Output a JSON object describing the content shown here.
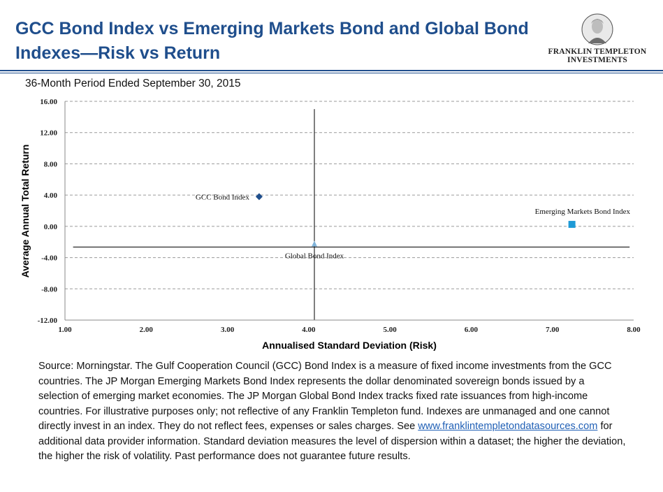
{
  "header": {
    "title": "GCC Bond Index vs Emerging Markets Bond and Global Bond Indexes—Risk vs Return",
    "subtitle": "36-Month Period Ended September 30, 2015"
  },
  "logo": {
    "line1": "FRANKLIN TEMPLETON",
    "line2": "INVESTMENTS"
  },
  "chart_data": {
    "type": "scatter",
    "xlabel": "Annualised Standard Deviation (Risk)",
    "ylabel": "Average Annual Total Return",
    "xlim": [
      1.0,
      8.0
    ],
    "ylim": [
      -12.0,
      16.0
    ],
    "x_ticks": [
      "1.00",
      "2.00",
      "3.00",
      "4.00",
      "5.00",
      "6.00",
      "7.00",
      "8.00"
    ],
    "y_ticks": [
      "16.00",
      "12.00",
      "8.00",
      "4.00",
      "0.00",
      "-4.00",
      "-8.00",
      "-12.00"
    ],
    "grid": "horizontal dashed",
    "reference_lines": {
      "x": 4.07,
      "y": -2.65
    },
    "points": [
      {
        "label": "GCC  Bond Index",
        "x": 3.39,
        "y": 3.8,
        "marker": "diamond",
        "color": "#1f4e8c"
      },
      {
        "label": "Emerging  Markets Bond Index",
        "x": 7.24,
        "y": 0.25,
        "marker": "square",
        "color": "#1e9ad6"
      },
      {
        "label": "Global  Bond Index",
        "x": 4.07,
        "y": -2.3,
        "marker": "triangle",
        "color": "#7fb2d8"
      }
    ]
  },
  "source": {
    "text_before_link": "Source: Morningstar. The Gulf Cooperation Council (GCC) Bond Index is a measure of fixed income investments from the GCC countries. The JP Morgan Emerging Markets Bond Index represents the dollar denominated sovereign bonds issued by a selection of emerging market economies. The JP Morgan Global Bond Index tracks fixed rate issuances from high-income countries. For illustrative  purposes only; not reflective of any Franklin Templeton fund. Indexes are unmanaged and one cannot directly invest in an index. They do not reflect fees, expenses or sales charges. See ",
    "link": "www.franklintempletondatasources.com",
    "text_after_link": " for additional data provider information. Standard deviation measures the level of dispersion within a dataset; the higher the deviation, the higher the risk of volatility.  Past performance does not guarantee future results."
  },
  "colors": {
    "title": "#1f4e8c",
    "rule": "#1f4e8c",
    "link": "#1f5fb5"
  }
}
